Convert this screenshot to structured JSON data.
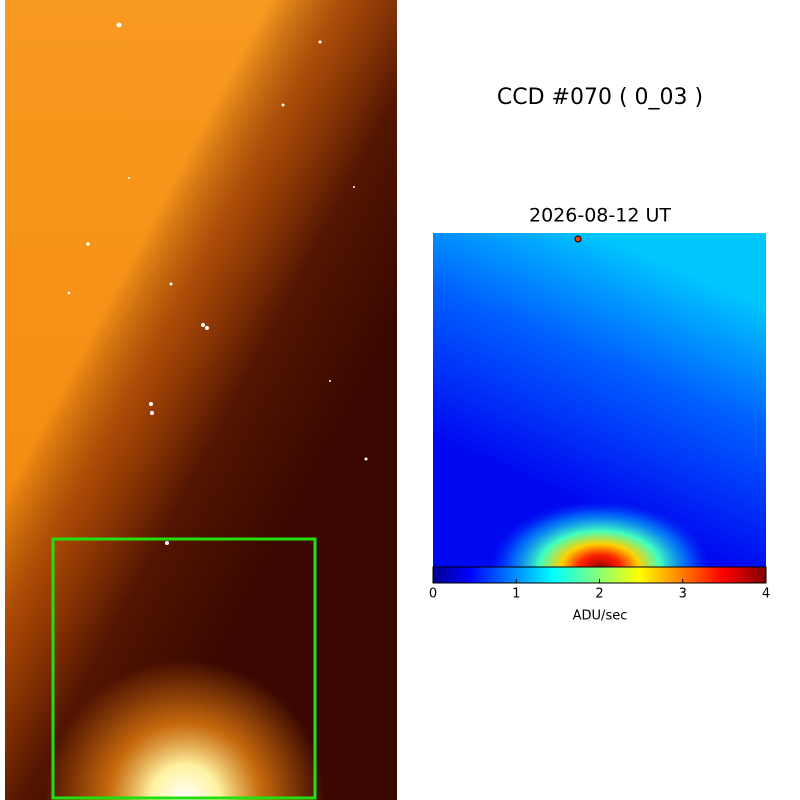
{
  "title": "CCD #070 ( 0_03 )",
  "image_title": "2026-08-12 UT",
  "colorbar": {
    "lim": [
      0,
      4
    ],
    "ticks": [
      0,
      1,
      2,
      3,
      4
    ],
    "label": "ADU/sec"
  }
}
